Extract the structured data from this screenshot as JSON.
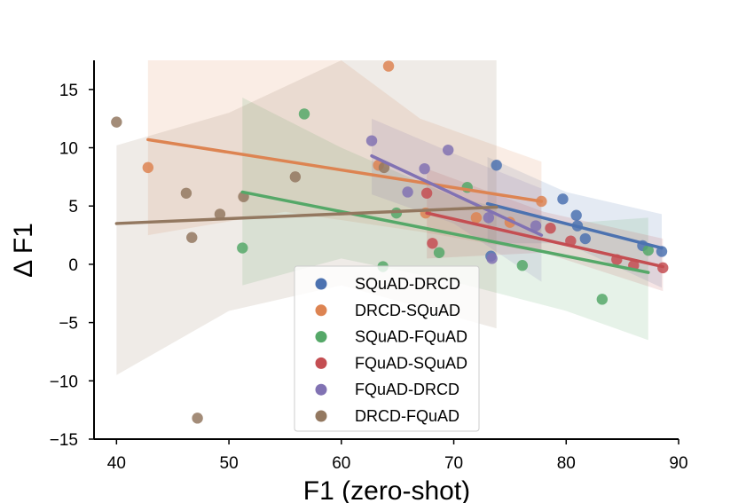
{
  "chart_data": {
    "type": "scatter",
    "xlabel": "F1 (zero-shot)",
    "ylabel": "Δ F1",
    "xlim": [
      38,
      90
    ],
    "ylim": [
      -15,
      17.5
    ],
    "xticks": [
      "40",
      "50",
      "60",
      "70",
      "80",
      "90"
    ],
    "yticks": [
      "15",
      "10",
      "5",
      "0",
      "−5",
      "−10",
      "−15"
    ],
    "xtick_values": [
      40,
      50,
      60,
      70,
      80,
      90
    ],
    "ytick_values": [
      15,
      10,
      5,
      0,
      -5,
      -10,
      -15
    ],
    "grid": false,
    "legend_position": "lower-center",
    "series": [
      {
        "name": "SQuAD-DRCD",
        "color": "#4c72b0",
        "points": [
          [
            73.3,
            0.7
          ],
          [
            73.8,
            8.5
          ],
          [
            79.7,
            5.6
          ],
          [
            80.9,
            4.2
          ],
          [
            81.0,
            3.3
          ],
          [
            81.7,
            2.2
          ],
          [
            86.8,
            1.6
          ],
          [
            88.5,
            1.1
          ]
        ],
        "fit": [
          [
            73.0,
            5.2
          ],
          [
            88.5,
            1.4
          ]
        ],
        "ci_upper": [
          [
            73.0,
            9.2
          ],
          [
            80.0,
            6.2
          ],
          [
            88.5,
            4.3
          ]
        ],
        "ci_lower": [
          [
            73.0,
            1.8
          ],
          [
            80.0,
            1.8
          ],
          [
            88.5,
            -2.0
          ]
        ]
      },
      {
        "name": "DRCD-SQuAD",
        "color": "#dd8452",
        "points": [
          [
            42.8,
            8.3
          ],
          [
            63.3,
            8.5
          ],
          [
            64.2,
            17.0
          ],
          [
            67.5,
            4.4
          ],
          [
            72.0,
            4.0
          ],
          [
            75.0,
            3.6
          ],
          [
            77.8,
            5.4
          ]
        ],
        "fit": [
          [
            42.8,
            10.7
          ],
          [
            77.8,
            5.4
          ]
        ],
        "ci_upper": [
          [
            42.8,
            17.5
          ],
          [
            60.0,
            17.5
          ],
          [
            67.0,
            12.5
          ],
          [
            77.8,
            8.8
          ]
        ],
        "ci_lower": [
          [
            42.8,
            2.5
          ],
          [
            55.0,
            4.5
          ],
          [
            67.0,
            2.8
          ],
          [
            77.8,
            1.0
          ]
        ]
      },
      {
        "name": "SQuAD-FQuAD",
        "color": "#55a868",
        "points": [
          [
            51.2,
            1.4
          ],
          [
            56.7,
            12.9
          ],
          [
            63.7,
            -0.2
          ],
          [
            64.9,
            4.4
          ],
          [
            68.7,
            1.0
          ],
          [
            71.2,
            6.6
          ],
          [
            76.1,
            -0.1
          ],
          [
            83.2,
            -3.0
          ],
          [
            87.3,
            1.2
          ]
        ],
        "fit": [
          [
            51.2,
            6.2
          ],
          [
            87.3,
            -0.7
          ]
        ],
        "ci_upper": [
          [
            51.2,
            14.3
          ],
          [
            60.0,
            10.0
          ],
          [
            70.0,
            5.8
          ],
          [
            80.0,
            3.5
          ],
          [
            87.3,
            4.0
          ]
        ],
        "ci_lower": [
          [
            51.2,
            -1.8
          ],
          [
            60.0,
            0.5
          ],
          [
            70.0,
            -1.5
          ],
          [
            80.0,
            -4.0
          ],
          [
            87.3,
            -6.5
          ]
        ]
      },
      {
        "name": "FQuAD-SQuAD",
        "color": "#c44e52",
        "points": [
          [
            67.6,
            6.1
          ],
          [
            68.1,
            1.8
          ],
          [
            78.6,
            3.1
          ],
          [
            80.4,
            2.0
          ],
          [
            84.5,
            0.4
          ],
          [
            86.0,
            -0.1
          ],
          [
            88.6,
            -0.3
          ]
        ],
        "fit": [
          [
            67.6,
            4.4
          ],
          [
            88.6,
            -0.2
          ]
        ],
        "ci_upper": [
          [
            67.6,
            8.2
          ],
          [
            78.0,
            4.5
          ],
          [
            88.6,
            2.2
          ]
        ],
        "ci_lower": [
          [
            67.6,
            0.5
          ],
          [
            78.0,
            1.0
          ],
          [
            88.6,
            -2.3
          ]
        ]
      },
      {
        "name": "FQuAD-DRCD",
        "color": "#8172b3",
        "points": [
          [
            62.7,
            10.6
          ],
          [
            65.9,
            6.2
          ],
          [
            67.4,
            8.2
          ],
          [
            69.5,
            9.8
          ],
          [
            73.1,
            4.0
          ],
          [
            73.4,
            0.5
          ],
          [
            77.3,
            3.3
          ]
        ],
        "fit": [
          [
            62.7,
            9.3
          ],
          [
            77.8,
            2.5
          ]
        ],
        "ci_upper": [
          [
            62.7,
            12.5
          ],
          [
            70.0,
            9.5
          ],
          [
            77.8,
            6.5
          ]
        ],
        "ci_lower": [
          [
            62.7,
            6.0
          ],
          [
            70.0,
            3.5
          ],
          [
            77.8,
            -1.5
          ]
        ]
      },
      {
        "name": "DRCD-FQuAD",
        "color": "#937860",
        "points": [
          [
            40.0,
            12.2
          ],
          [
            46.2,
            6.1
          ],
          [
            46.7,
            2.3
          ],
          [
            47.2,
            -13.2
          ],
          [
            49.2,
            4.3
          ],
          [
            51.3,
            5.8
          ],
          [
            55.9,
            7.5
          ],
          [
            63.8,
            8.3
          ]
        ],
        "fit": [
          [
            40.0,
            3.5
          ],
          [
            73.8,
            4.9
          ]
        ],
        "ci_upper": [
          [
            40.0,
            10.2
          ],
          [
            50.0,
            13.0
          ],
          [
            60.0,
            17.5
          ],
          [
            73.8,
            17.5
          ]
        ],
        "ci_lower": [
          [
            40.0,
            -9.5
          ],
          [
            50.0,
            -4.0
          ],
          [
            60.0,
            -1.8
          ],
          [
            73.8,
            -5.5
          ]
        ]
      }
    ]
  }
}
